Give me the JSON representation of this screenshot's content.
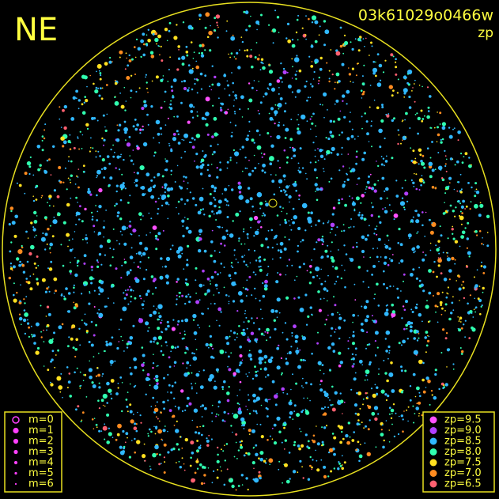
{
  "header": {
    "direction": "NE",
    "image_id": "03k61029o0466w",
    "mode": "zp"
  },
  "magnitude_legend": {
    "items": [
      {
        "label": "m=0",
        "radius": 4,
        "open": true
      },
      {
        "label": "m=1",
        "radius": 3.6
      },
      {
        "label": "m=2",
        "radius": 3.1
      },
      {
        "label": "m=3",
        "radius": 2.6
      },
      {
        "label": "m=4",
        "radius": 2.1
      },
      {
        "label": "m=5",
        "radius": 1.6
      },
      {
        "label": "m=6",
        "radius": 1.1
      }
    ],
    "color": "#ff40ff"
  },
  "zp_legend": {
    "items": [
      {
        "label": "zp=9.5",
        "color": "#ff50ff"
      },
      {
        "label": "zp=9.0",
        "color": "#b040ff"
      },
      {
        "label": "zp=8.5",
        "color": "#30b8ff"
      },
      {
        "label": "zp=8.0",
        "color": "#30ffb0"
      },
      {
        "label": "zp=7.5",
        "color": "#ffe020"
      },
      {
        "label": "zp=7.0",
        "color": "#ff8c20"
      },
      {
        "label": "zp=6.5",
        "color": "#ff6070"
      }
    ]
  }
}
